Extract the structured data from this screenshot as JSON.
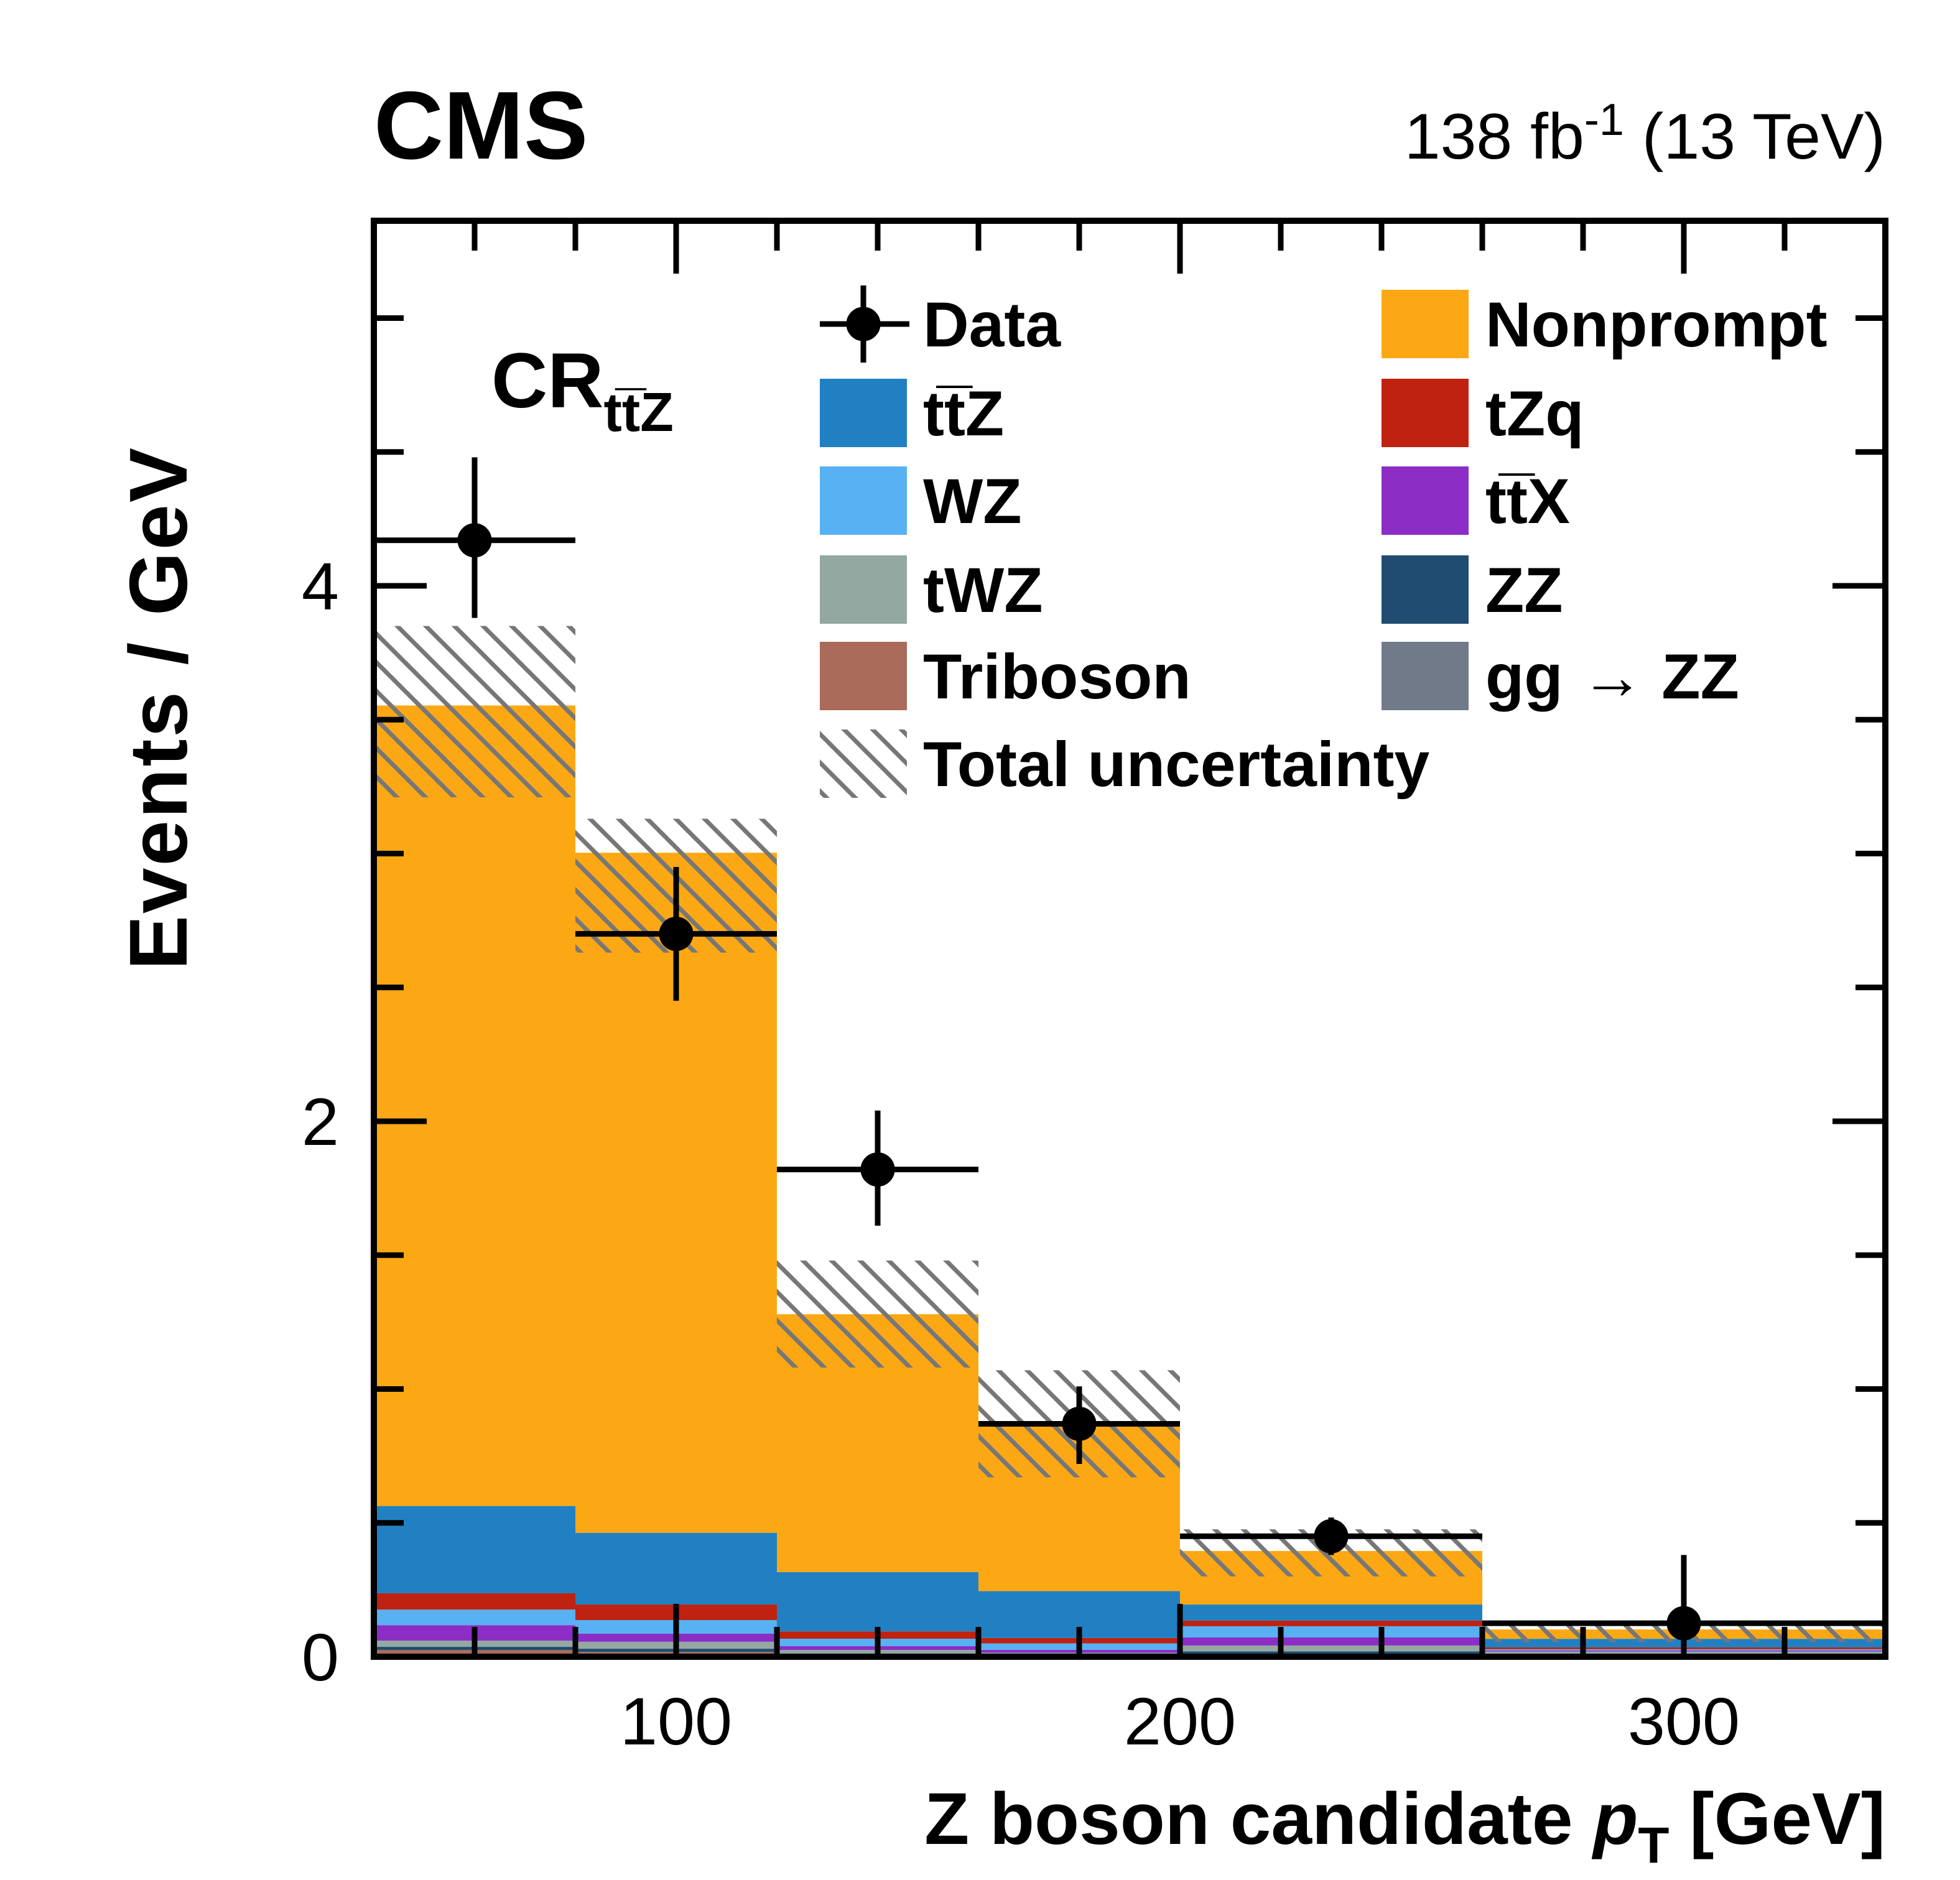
{
  "header": {
    "experiment": "CMS",
    "lumi_prefix": "138 fb",
    "lumi_sup": "-1",
    "lumi_suffix": " (13 TeV)"
  },
  "region_label": {
    "prefix": "CR",
    "subscript": "tt̅Z"
  },
  "axes": {
    "y_title": "Events / GeV",
    "x_title_prefix": "Z boson candidate ",
    "x_title_var": "p",
    "x_title_sub": "T",
    "x_title_suffix": " [GeV]"
  },
  "colors": {
    "frame": "#000000",
    "hatch": "#777777",
    "data_marker": "#000000"
  },
  "legend": {
    "columns": [
      [
        {
          "type": "marker",
          "label": "Data"
        },
        {
          "type": "box",
          "series": "ttZ"
        },
        {
          "type": "box",
          "series": "WZ"
        },
        {
          "type": "box",
          "series": "tWZ"
        },
        {
          "type": "box",
          "series": "Triboson"
        },
        {
          "type": "hatch",
          "label": "Total uncertainty"
        }
      ],
      [
        {
          "type": "box",
          "series": "Nonprompt"
        },
        {
          "type": "box",
          "series": "tZq"
        },
        {
          "type": "box",
          "series": "ttX"
        },
        {
          "type": "box",
          "series": "ZZ"
        },
        {
          "type": "box",
          "series": "ggZZ"
        }
      ]
    ]
  },
  "chart_data": {
    "type": "bar",
    "stacked": true,
    "title": "CMS",
    "xlabel": "Z boson candidate pT [GeV]",
    "ylabel": "Events / GeV",
    "xlim": [
      40,
      340
    ],
    "ylim": [
      0,
      5.3635
    ],
    "grid": false,
    "legend_position": "top-inside",
    "bin_edges": [
      40,
      80,
      120,
      160,
      200,
      260,
      340
    ],
    "x_major_ticks": [
      100,
      200,
      300
    ],
    "x_major_tick_labels": [
      "100",
      "200",
      "300"
    ],
    "x_minor_step": 20,
    "y_major_ticks": [
      0,
      2,
      4
    ],
    "y_major_tick_labels": [
      "0",
      "2",
      "4"
    ],
    "y_minor_step": 0.5,
    "series": [
      {
        "name": "ggZZ",
        "label": "gg → ZZ",
        "color": "#717A88",
        "values": [
          0.007,
          0.005,
          0.002,
          0.001,
          0.004,
          0.003
        ]
      },
      {
        "name": "Triboson",
        "label": "Triboson",
        "color": "#AA6B5A",
        "values": [
          0.018,
          0.013,
          0.003,
          0.001,
          0.006,
          0.004
        ]
      },
      {
        "name": "ZZ",
        "label": "ZZ",
        "color": "#1F4C70",
        "values": [
          0.012,
          0.012,
          0.0034,
          0.001,
          0.01,
          0.005
        ]
      },
      {
        "name": "tWZ",
        "label": "tWZ",
        "color": "#94A8A2",
        "values": [
          0.023,
          0.026,
          0.017,
          0.012,
          0.022,
          0.007
        ]
      },
      {
        "name": "ttX",
        "label": "tt̅X",
        "color": "#8C2DC6",
        "values": [
          0.058,
          0.03,
          0.014,
          0.011,
          0.03,
          0.004
        ]
      },
      {
        "name": "WZ",
        "label": "WZ",
        "color": "#58B1F2",
        "values": [
          0.058,
          0.051,
          0.028,
          0.024,
          0.042,
          0.005
        ]
      },
      {
        "name": "tZq",
        "label": "tZq",
        "color": "#BF2210",
        "values": [
          0.061,
          0.058,
          0.027,
          0.02,
          0.021,
          0.007
        ]
      },
      {
        "name": "ttZ",
        "label": "tt̅Z",
        "color": "#2180C2",
        "values": [
          0.326,
          0.268,
          0.222,
          0.175,
          0.06,
          0.032
        ]
      },
      {
        "name": "Nonprompt",
        "label": "Nonprompt",
        "color": "#FCA814",
        "values": [
          2.99,
          2.54,
          0.963,
          0.625,
          0.2,
          0.035
        ]
      }
    ],
    "totals": [
      3.553,
      3.003,
      1.279,
      0.87,
      0.395,
      0.102
    ],
    "uncertainty_band": {
      "label": "Total uncertainty",
      "lo": [
        3.21,
        2.63,
        1.08,
        0.67,
        0.3,
        0.055
      ],
      "hi": [
        3.85,
        3.13,
        1.48,
        1.07,
        0.476,
        0.125
      ]
    },
    "data_points": {
      "label": "Data",
      "x": [
        60,
        100,
        140,
        180,
        230,
        300
      ],
      "y": [
        4.17,
        2.7,
        1.82,
        0.87,
        0.45,
        0.125
      ],
      "y_err_lo": [
        3.88,
        2.45,
        1.61,
        0.72,
        0.38,
        0.01
      ],
      "y_err_hi": [
        4.48,
        2.95,
        2.04,
        1.01,
        0.52,
        0.38
      ],
      "x_lo": [
        40,
        80,
        120,
        160,
        200,
        260
      ],
      "x_hi": [
        80,
        120,
        160,
        200,
        260,
        340
      ]
    }
  }
}
